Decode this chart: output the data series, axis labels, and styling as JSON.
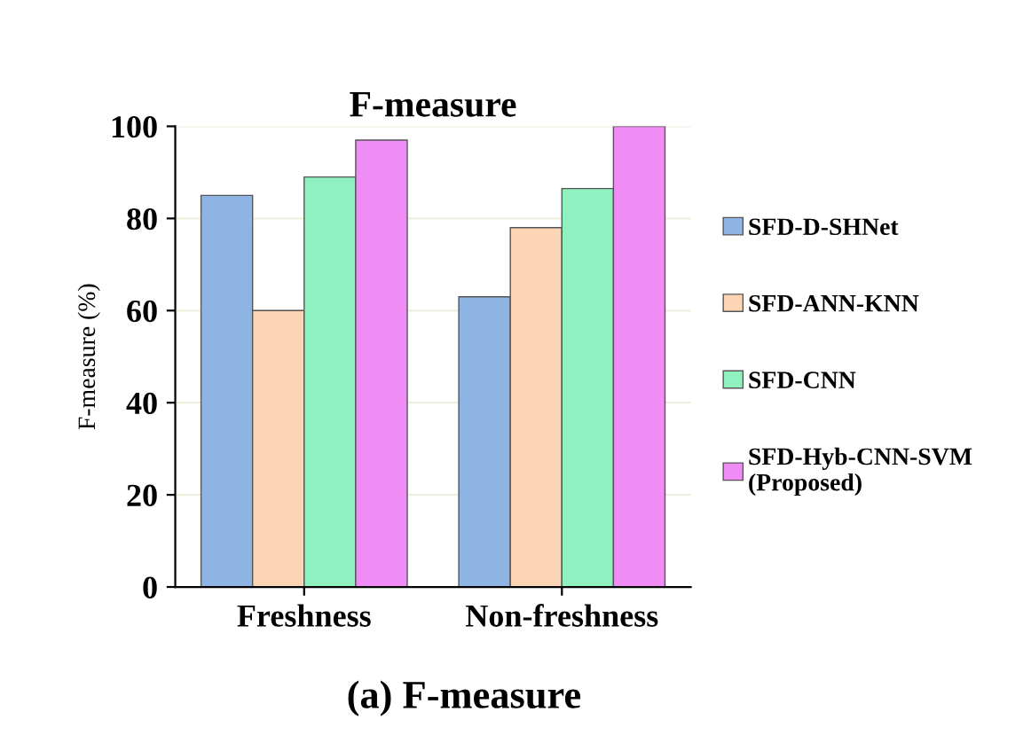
{
  "chart_data": {
    "type": "bar",
    "title": "F-measure",
    "ylabel": "F-measure (%)",
    "categories": [
      "Freshness",
      "Non-freshness"
    ],
    "series": [
      {
        "name": "SFD-D-SHNet",
        "color": "#8eb4e3",
        "values": [
          85,
          63
        ]
      },
      {
        "name": "SFD-ANN-KNN",
        "color": "#fcd5b5",
        "values": [
          60,
          78
        ]
      },
      {
        "name": "SFD-CNN",
        "color": "#8ff0c0",
        "values": [
          89,
          86.5
        ]
      },
      {
        "name": "SFD-Hyb-CNN-SVM\n(Proposed)",
        "color": "#f08cf5",
        "values": [
          97,
          100
        ]
      }
    ],
    "ylim": [
      0,
      100
    ],
    "yticks": [
      0,
      20,
      40,
      60,
      80,
      100
    ],
    "grid": "y",
    "legend": "right",
    "annotations": [
      "(a) F-measure"
    ]
  }
}
